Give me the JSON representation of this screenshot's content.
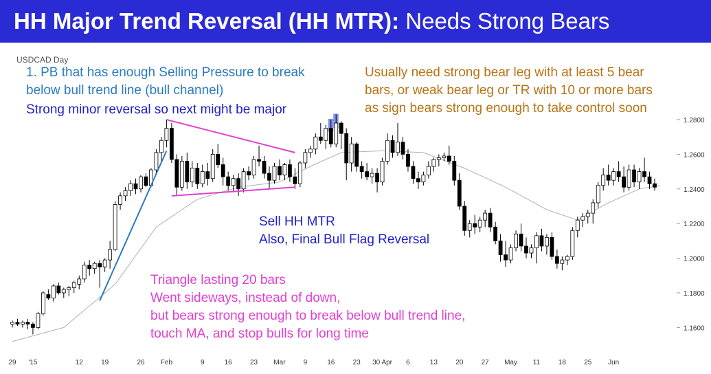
{
  "title": {
    "bold": "HH Major Trend Reversal (HH MTR):",
    "normal": "Needs Strong Bears"
  },
  "symbol_label": "USDCAD Day",
  "colors": {
    "title_bg": "#2b2bd6",
    "blue_text": "#2a7ac0",
    "navy_text": "#1f1fcc",
    "orange_text": "#b87314",
    "magenta": "#e040d0",
    "trend_line": "#2a7ac0",
    "ma_line": "#b0b0b0",
    "highlight": "#5b6fe0",
    "candle_up": "#ffffff",
    "candle_down": "#000000"
  },
  "annotations": {
    "pb": [
      "1. PB that has enough Selling Pressure to break",
      "below bull trend line (bull channel)"
    ],
    "minor_reversal": "Strong minor reversal so next might be major",
    "bear_leg": [
      "Usually need strong bear leg with at least 5 bear",
      "bars, or weak bear leg or TR with 10 or more bars",
      "as sign bears strong enough to take control soon"
    ],
    "sell": [
      "Sell HH MTR",
      "Also, Final Bull Flag Reversal"
    ],
    "triangle": [
      "Triangle lasting 20  bars",
      "Went sideways, instead of down,",
      "but bears strong enough to break below bull trend line,",
      "touch MA, and stop bulls for long time"
    ]
  },
  "chart_data": {
    "type": "candlestick",
    "symbol": "USDCAD",
    "timeframe": "Day",
    "ylim": [
      1.15,
      1.28
    ],
    "y_ticks": [
      "1.1600",
      "1.1800",
      "1.2000",
      "1.2200",
      "1.2400",
      "1.2600",
      "1.2800"
    ],
    "x_tick_labels": [
      "29",
      "'15",
      "12",
      "19",
      "26",
      "Feb",
      "9",
      "16",
      "23",
      "Mar",
      "9",
      "16",
      "23",
      "30 Apr",
      "6",
      "13",
      "20",
      "27",
      "May",
      "11",
      "18",
      "25",
      "Jun"
    ],
    "x_tick_bar_index": [
      0,
      4,
      13,
      18,
      25,
      30,
      37,
      42,
      47,
      52,
      57,
      62,
      67,
      72,
      77,
      82,
      87,
      92,
      97,
      102,
      107,
      112,
      117
    ],
    "highlighted_bars": [
      62,
      63
    ],
    "trend_line": {
      "from": {
        "bar": 17,
        "price": 1.1755
      },
      "to": {
        "bar": 30,
        "price": 1.262
      }
    },
    "triangle": {
      "upper": [
        {
          "bar": 30,
          "price": 1.28
        },
        {
          "bar": 55,
          "price": 1.261
        }
      ],
      "lower": [
        {
          "bar": 31,
          "price": 1.236
        },
        {
          "bar": 55,
          "price": 1.241
        }
      ]
    },
    "moving_average": [
      [
        0,
        1.152
      ],
      [
        10,
        1.16
      ],
      [
        20,
        1.185
      ],
      [
        28,
        1.218
      ],
      [
        36,
        1.234
      ],
      [
        44,
        1.241
      ],
      [
        52,
        1.244
      ],
      [
        58,
        1.253
      ],
      [
        64,
        1.261
      ],
      [
        72,
        1.262
      ],
      [
        80,
        1.261
      ],
      [
        88,
        1.252
      ],
      [
        96,
        1.241
      ],
      [
        104,
        1.228
      ],
      [
        110,
        1.222
      ],
      [
        116,
        1.232
      ],
      [
        122,
        1.24
      ],
      [
        126,
        1.242
      ]
    ],
    "ohlc": [
      [
        1.162,
        1.164,
        1.16,
        1.163
      ],
      [
        1.163,
        1.165,
        1.161,
        1.162
      ],
      [
        1.162,
        1.164,
        1.16,
        1.163
      ],
      [
        1.163,
        1.165,
        1.159,
        1.162
      ],
      [
        1.162,
        1.163,
        1.156,
        1.16
      ],
      [
        1.16,
        1.169,
        1.159,
        1.168
      ],
      [
        1.168,
        1.181,
        1.167,
        1.18
      ],
      [
        1.179,
        1.182,
        1.176,
        1.177
      ],
      [
        1.177,
        1.185,
        1.175,
        1.184
      ],
      [
        1.184,
        1.186,
        1.179,
        1.18
      ],
      [
        1.18,
        1.183,
        1.177,
        1.182
      ],
      [
        1.182,
        1.184,
        1.178,
        1.183
      ],
      [
        1.183,
        1.187,
        1.18,
        1.186
      ],
      [
        1.185,
        1.19,
        1.182,
        1.188
      ],
      [
        1.188,
        1.198,
        1.186,
        1.196
      ],
      [
        1.196,
        1.199,
        1.19,
        1.194
      ],
      [
        1.194,
        1.198,
        1.191,
        1.197
      ],
      [
        1.197,
        1.199,
        1.183,
        1.195
      ],
      [
        1.195,
        1.2,
        1.192,
        1.199
      ],
      [
        1.199,
        1.21,
        1.194,
        1.205
      ],
      [
        1.205,
        1.233,
        1.204,
        1.231
      ],
      [
        1.231,
        1.238,
        1.228,
        1.236
      ],
      [
        1.236,
        1.241,
        1.233,
        1.239
      ],
      [
        1.239,
        1.245,
        1.236,
        1.243
      ],
      [
        1.243,
        1.246,
        1.237,
        1.24
      ],
      [
        1.24,
        1.248,
        1.238,
        1.247
      ],
      [
        1.247,
        1.249,
        1.241,
        1.242
      ],
      [
        1.242,
        1.252,
        1.241,
        1.251
      ],
      [
        1.251,
        1.263,
        1.249,
        1.261
      ],
      [
        1.261,
        1.27,
        1.256,
        1.268
      ],
      [
        1.268,
        1.28,
        1.264,
        1.275
      ],
      [
        1.275,
        1.278,
        1.255,
        1.257
      ],
      [
        1.257,
        1.26,
        1.236,
        1.241
      ],
      [
        1.241,
        1.259,
        1.239,
        1.256
      ],
      [
        1.256,
        1.261,
        1.24,
        1.244
      ],
      [
        1.244,
        1.256,
        1.241,
        1.252
      ],
      [
        1.252,
        1.255,
        1.24,
        1.243
      ],
      [
        1.243,
        1.254,
        1.241,
        1.25
      ],
      [
        1.25,
        1.255,
        1.242,
        1.246
      ],
      [
        1.246,
        1.263,
        1.244,
        1.26
      ],
      [
        1.26,
        1.266,
        1.252,
        1.254
      ],
      [
        1.254,
        1.258,
        1.242,
        1.247
      ],
      [
        1.247,
        1.25,
        1.239,
        1.242
      ],
      [
        1.242,
        1.248,
        1.238,
        1.246
      ],
      [
        1.246,
        1.249,
        1.236,
        1.24
      ],
      [
        1.24,
        1.252,
        1.238,
        1.25
      ],
      [
        1.25,
        1.253,
        1.245,
        1.248
      ],
      [
        1.248,
        1.259,
        1.246,
        1.257
      ],
      [
        1.257,
        1.265,
        1.253,
        1.256
      ],
      [
        1.256,
        1.259,
        1.246,
        1.249
      ],
      [
        1.249,
        1.253,
        1.24,
        1.245
      ],
      [
        1.245,
        1.255,
        1.243,
        1.253
      ],
      [
        1.253,
        1.257,
        1.245,
        1.248
      ],
      [
        1.248,
        1.255,
        1.245,
        1.254
      ],
      [
        1.254,
        1.257,
        1.244,
        1.247
      ],
      [
        1.247,
        1.252,
        1.24,
        1.243
      ],
      [
        1.243,
        1.256,
        1.241,
        1.255
      ],
      [
        1.255,
        1.263,
        1.252,
        1.261
      ],
      [
        1.261,
        1.265,
        1.258,
        1.263
      ],
      [
        1.263,
        1.272,
        1.26,
        1.27
      ],
      [
        1.27,
        1.278,
        1.266,
        1.268
      ],
      [
        1.268,
        1.277,
        1.263,
        1.275
      ],
      [
        1.275,
        1.28,
        1.264,
        1.266
      ],
      [
        1.266,
        1.283,
        1.264,
        1.278
      ],
      [
        1.278,
        1.279,
        1.263,
        1.272
      ],
      [
        1.272,
        1.275,
        1.245,
        1.255
      ],
      [
        1.255,
        1.27,
        1.25,
        1.266
      ],
      [
        1.266,
        1.267,
        1.25,
        1.253
      ],
      [
        1.253,
        1.256,
        1.246,
        1.25
      ],
      [
        1.25,
        1.255,
        1.245,
        1.247
      ],
      [
        1.247,
        1.252,
        1.243,
        1.249
      ],
      [
        1.249,
        1.252,
        1.238,
        1.244
      ],
      [
        1.244,
        1.258,
        1.242,
        1.256
      ],
      [
        1.256,
        1.272,
        1.254,
        1.268
      ],
      [
        1.268,
        1.271,
        1.258,
        1.261
      ],
      [
        1.261,
        1.278,
        1.259,
        1.267
      ],
      [
        1.267,
        1.27,
        1.257,
        1.26
      ],
      [
        1.26,
        1.263,
        1.25,
        1.253
      ],
      [
        1.253,
        1.256,
        1.243,
        1.246
      ],
      [
        1.246,
        1.25,
        1.24,
        1.244
      ],
      [
        1.244,
        1.25,
        1.242,
        1.248
      ],
      [
        1.248,
        1.256,
        1.246,
        1.253
      ],
      [
        1.253,
        1.258,
        1.25,
        1.257
      ],
      [
        1.257,
        1.26,
        1.253,
        1.258
      ],
      [
        1.258,
        1.261,
        1.256,
        1.259
      ],
      [
        1.259,
        1.265,
        1.254,
        1.256
      ],
      [
        1.256,
        1.259,
        1.242,
        1.245
      ],
      [
        1.245,
        1.249,
        1.228,
        1.23
      ],
      [
        1.23,
        1.233,
        1.213,
        1.216
      ],
      [
        1.216,
        1.222,
        1.212,
        1.22
      ],
      [
        1.22,
        1.225,
        1.214,
        1.218
      ],
      [
        1.218,
        1.224,
        1.215,
        1.222
      ],
      [
        1.222,
        1.228,
        1.218,
        1.226
      ],
      [
        1.226,
        1.229,
        1.215,
        1.218
      ],
      [
        1.218,
        1.221,
        1.208,
        1.21
      ],
      [
        1.21,
        1.214,
        1.198,
        1.202
      ],
      [
        1.202,
        1.21,
        1.195,
        1.199
      ],
      [
        1.199,
        1.208,
        1.197,
        1.206
      ],
      [
        1.206,
        1.216,
        1.204,
        1.214
      ],
      [
        1.214,
        1.22,
        1.204,
        1.207
      ],
      [
        1.207,
        1.212,
        1.2,
        1.203
      ],
      [
        1.203,
        1.208,
        1.2,
        1.206
      ],
      [
        1.206,
        1.215,
        1.197,
        1.213
      ],
      [
        1.213,
        1.217,
        1.204,
        1.207
      ],
      [
        1.207,
        1.214,
        1.202,
        1.212
      ],
      [
        1.212,
        1.215,
        1.199,
        1.201
      ],
      [
        1.201,
        1.205,
        1.194,
        1.197
      ],
      [
        1.197,
        1.201,
        1.193,
        1.199
      ],
      [
        1.199,
        1.202,
        1.196,
        1.201
      ],
      [
        1.201,
        1.218,
        1.199,
        1.216
      ],
      [
        1.216,
        1.224,
        1.212,
        1.222
      ],
      [
        1.222,
        1.226,
        1.218,
        1.224
      ],
      [
        1.224,
        1.228,
        1.22,
        1.226
      ],
      [
        1.226,
        1.234,
        1.22,
        1.232
      ],
      [
        1.232,
        1.244,
        1.229,
        1.242
      ],
      [
        1.242,
        1.252,
        1.239,
        1.248
      ],
      [
        1.248,
        1.254,
        1.242,
        1.245
      ],
      [
        1.245,
        1.252,
        1.242,
        1.25
      ],
      [
        1.25,
        1.256,
        1.244,
        1.247
      ],
      [
        1.247,
        1.253,
        1.238,
        1.241
      ],
      [
        1.241,
        1.254,
        1.239,
        1.251
      ],
      [
        1.251,
        1.254,
        1.241,
        1.244
      ],
      [
        1.244,
        1.252,
        1.24,
        1.25
      ],
      [
        1.25,
        1.258,
        1.244,
        1.247
      ],
      [
        1.247,
        1.25,
        1.24,
        1.243
      ],
      [
        1.243,
        1.246,
        1.239,
        1.241
      ]
    ]
  }
}
